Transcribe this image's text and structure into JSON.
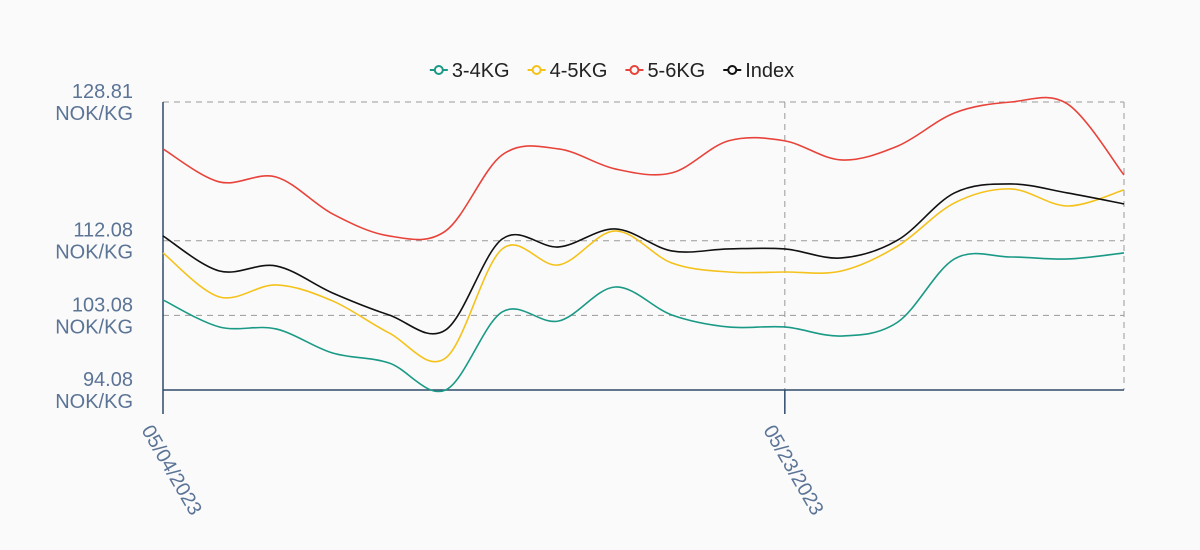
{
  "chart_data": {
    "type": "line",
    "categories": [
      "05/04/2023",
      null,
      null,
      null,
      null,
      null,
      null,
      null,
      null,
      null,
      null,
      "05/23/2023",
      null,
      null,
      null,
      null,
      null,
      null
    ],
    "series": [
      {
        "name": "3-4KG",
        "color": "#1a9a86",
        "values": [
          104.94,
          101.68,
          101.44,
          98.54,
          97.34,
          94.08,
          103.49,
          102.4,
          106.5,
          103.13,
          101.68,
          101.68,
          100.59,
          102.28,
          109.88,
          110.12,
          109.88,
          110.61
        ]
      },
      {
        "name": "4-5KG",
        "color": "#f5c21b",
        "values": [
          110.61,
          105.3,
          106.75,
          104.82,
          100.96,
          97.94,
          111.09,
          109.16,
          113.26,
          109.4,
          108.31,
          108.31,
          108.43,
          111.45,
          116.64,
          118.33,
          116.27,
          118.21
        ]
      },
      {
        "name": "5-6KG",
        "color": "#e8433a",
        "values": [
          123.15,
          119.17,
          119.77,
          115.31,
          112.66,
          113.26,
          122.43,
          123.15,
          120.74,
          120.26,
          124.12,
          124.12,
          121.82,
          123.51,
          127.49,
          128.81,
          128.58,
          120.01
        ]
      },
      {
        "name": "Index",
        "color": "#111111",
        "values": [
          112.66,
          108.43,
          109.04,
          105.78,
          103.13,
          101.32,
          112.29,
          111.33,
          113.5,
          110.85,
          111.09,
          111.09,
          110.0,
          112.17,
          117.84,
          118.93,
          117.84,
          116.52
        ]
      }
    ],
    "ylim": [
      94.08,
      128.81
    ],
    "yticks": [
      {
        "value": 94.08,
        "label": "94.08 NOK/KG"
      },
      {
        "value": 103.08,
        "label": "103.08 NOK/KG"
      },
      {
        "value": 112.08,
        "label": "112.08 NOK/KG"
      },
      {
        "value": 128.81,
        "label": "128.81 NOK/KG"
      }
    ],
    "grid": true,
    "legend": "top"
  }
}
